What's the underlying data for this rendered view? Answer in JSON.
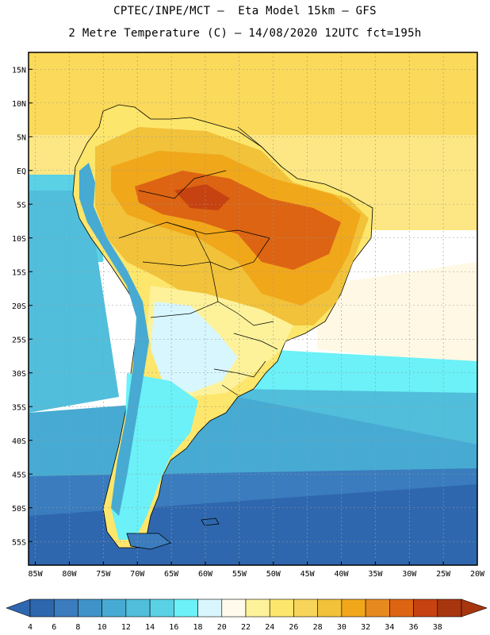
{
  "header": {
    "line1": "CPTEC/INPE/MCT –  Eta Model 15km – GFS",
    "line2": "2 Metre Temperature (C) – 14/08/2020 12UTC fct=195h"
  },
  "map": {
    "lat_labels": [
      "15N",
      "10N",
      "5N",
      "EQ",
      "5S",
      "10S",
      "15S",
      "20S",
      "25S",
      "30S",
      "35S",
      "40S",
      "45S",
      "50S",
      "55S"
    ],
    "lon_labels": [
      "85W",
      "80W",
      "75W",
      "70W",
      "65W",
      "60W",
      "55W",
      "50W",
      "45W",
      "40W",
      "35W",
      "30W",
      "25W",
      "20W"
    ],
    "grid": true,
    "projection": "lat-lon, 85W–20W, 17N–58S"
  },
  "colorbar": {
    "labels": [
      "4",
      "6",
      "8",
      "10",
      "12",
      "14",
      "16",
      "18",
      "20",
      "22",
      "24",
      "26",
      "28",
      "30",
      "32",
      "34",
      "36",
      "38"
    ],
    "colors": [
      "#2f67ae",
      "#3a7cbd",
      "#3f93c8",
      "#47aad2",
      "#51bedb",
      "#5ad1e4",
      "#6bf1f7",
      "#d8f6fd",
      "#fffaec",
      "#fdf29a",
      "#fde66c",
      "#f7d45a",
      "#f1c23a",
      "#f1a71a",
      "#e68a1f",
      "#dc6413",
      "#c64210",
      "#a7360e"
    ]
  },
  "colors": {
    "ocean_tropical": "#fbd95a",
    "ocean_warm": "#fde784",
    "ocean_pale": "#fff8e4",
    "ocean_cool": "#5ad1e4",
    "ocean_cold": "#3a7cbd",
    "ocean_coldest": "#2f67ae",
    "land_hot": "#dc6413",
    "land_warm": "#f1a71a",
    "land_mild": "#fde66c"
  }
}
